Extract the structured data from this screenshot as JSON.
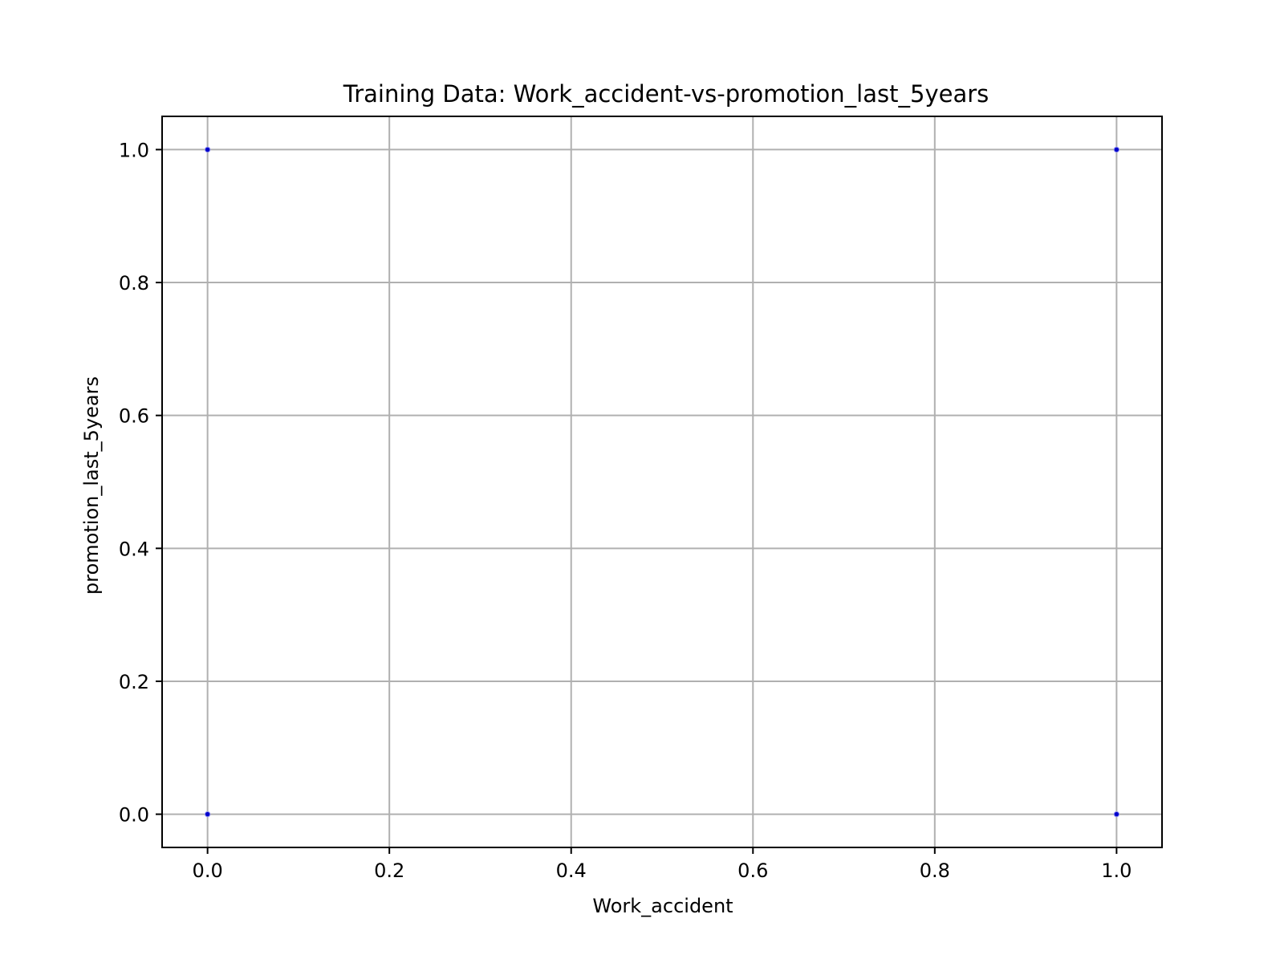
{
  "chart_data": {
    "type": "scatter",
    "title": "Training Data: Work_accident-vs-promotion_last_5years",
    "xlabel": "Work_accident",
    "ylabel": "promotion_last_5years",
    "xlim": [
      -0.05,
      1.05
    ],
    "ylim": [
      -0.05,
      1.05
    ],
    "x_ticks": [
      0.0,
      0.2,
      0.4,
      0.6,
      0.8,
      1.0
    ],
    "x_tick_labels": [
      "0.0",
      "0.2",
      "0.4",
      "0.6",
      "0.8",
      "1.0"
    ],
    "y_ticks": [
      0.0,
      0.2,
      0.4,
      0.6,
      0.8,
      1.0
    ],
    "y_tick_labels": [
      "0.0",
      "0.2",
      "0.4",
      "0.6",
      "0.8",
      "1.0"
    ],
    "grid": true,
    "legend": false,
    "points": [
      {
        "x": 0.0,
        "y": 0.0
      },
      {
        "x": 0.0,
        "y": 1.0
      },
      {
        "x": 1.0,
        "y": 0.0
      },
      {
        "x": 1.0,
        "y": 1.0
      }
    ],
    "colors": {
      "point_fill": "#0000cc",
      "point_edge": "#9999ee",
      "grid": "#b0b0b0",
      "axes": "#000000"
    }
  }
}
